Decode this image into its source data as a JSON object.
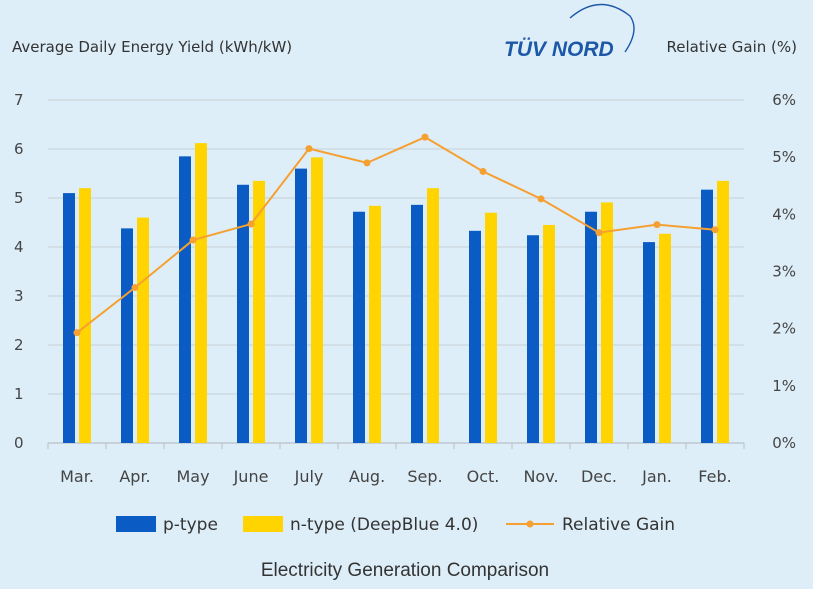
{
  "logo": {
    "text": "TÜV NORD"
  },
  "caption": "Electricity Generation Comparison",
  "colors": {
    "p_type": "#0a5cc4",
    "n_type": "#ffd400",
    "gain": "#f5a031",
    "grid": "#c8d0d6",
    "background": "#ddeef8"
  },
  "chart_data": {
    "type": "bar",
    "title": "",
    "ylabel": "Average Daily Energy Yield  (kWh/kW)",
    "y2label": "Relative Gain  (%)",
    "categories": [
      "Mar.",
      "Apr.",
      "May",
      "June",
      "July",
      "Aug.",
      "Sep.",
      "Oct.",
      "Nov.",
      "Dec.",
      "Jan.",
      "Feb."
    ],
    "ylim": [
      0,
      7
    ],
    "yticks": [
      "0",
      "1",
      "2",
      "3",
      "4",
      "5",
      "6",
      "7"
    ],
    "y2lim": [
      0,
      6
    ],
    "y2ticks": [
      "0%",
      "1%",
      "2%",
      "3%",
      "4%",
      "5%",
      "6%"
    ],
    "grid": true,
    "legend_position": "bottom",
    "series": [
      {
        "name": "p-type",
        "type": "bar",
        "values": [
          5.1,
          4.38,
          5.85,
          5.27,
          5.6,
          4.72,
          4.86,
          4.33,
          4.24,
          4.72,
          4.1,
          5.17
        ]
      },
      {
        "name": "n-type (DeepBlue 4.0)",
        "type": "bar",
        "values": [
          5.2,
          4.6,
          6.12,
          5.35,
          5.83,
          4.84,
          5.2,
          4.7,
          4.45,
          4.91,
          4.27,
          5.35
        ]
      },
      {
        "name": "Relative Gain",
        "type": "line",
        "axis": "right",
        "values": [
          1.93,
          2.72,
          3.55,
          3.83,
          5.15,
          4.9,
          5.35,
          4.75,
          4.27,
          3.68,
          3.82,
          3.73
        ]
      }
    ]
  }
}
